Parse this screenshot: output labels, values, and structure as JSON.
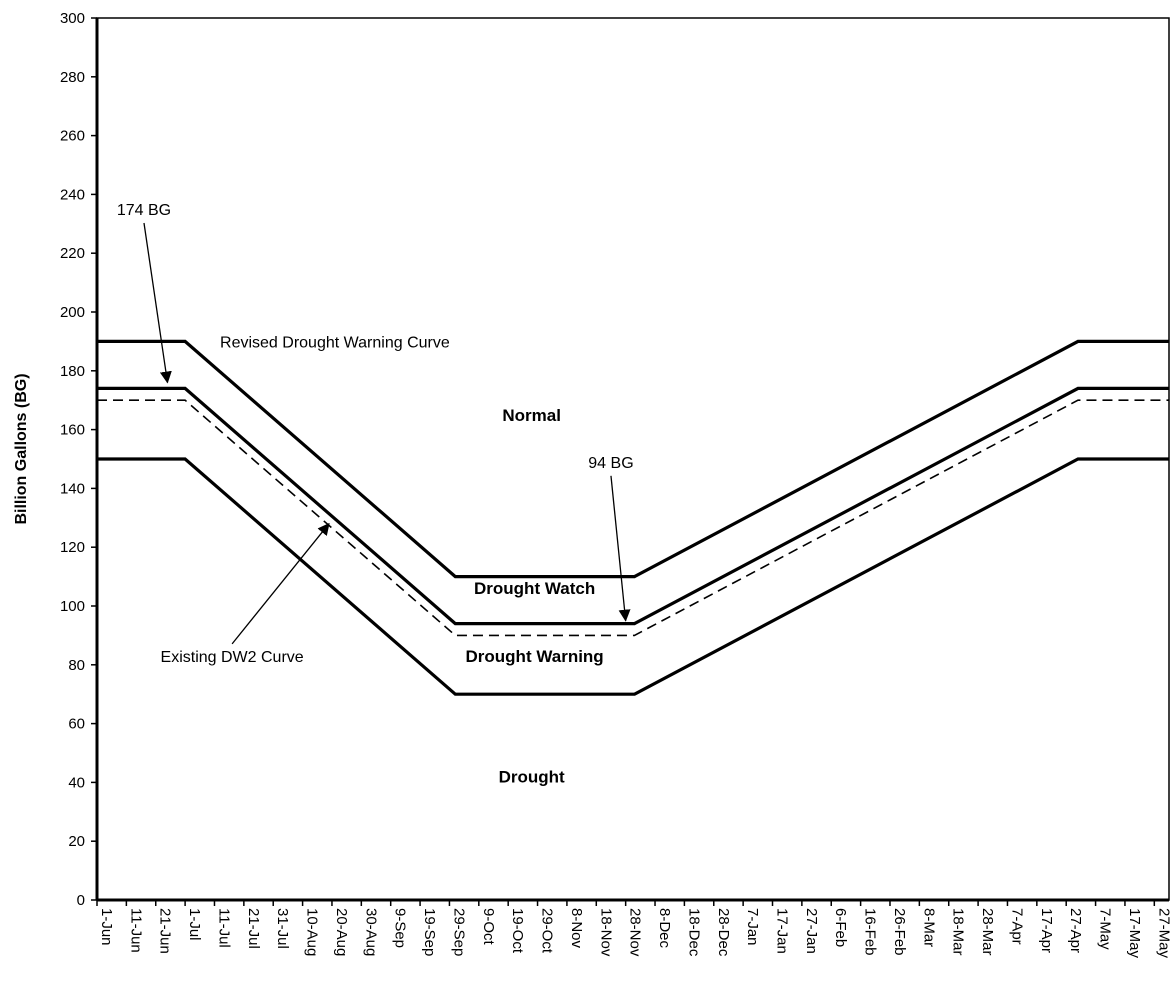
{
  "chart_data": {
    "type": "line",
    "title": "",
    "xlabel": "",
    "ylabel": "Billion Gallons (BG)",
    "ylim": [
      0,
      300
    ],
    "yticks": [
      0,
      20,
      40,
      60,
      80,
      100,
      120,
      140,
      160,
      180,
      200,
      220,
      240,
      260,
      280,
      300
    ],
    "x_categories": [
      "1-Jun",
      "11-Jun",
      "21-Jun",
      "1-Jul",
      "11-Jul",
      "21-Jul",
      "31-Jul",
      "10-Aug",
      "20-Aug",
      "30-Aug",
      "9-Sep",
      "19-Sep",
      "29-Sep",
      "9-Oct",
      "19-Oct",
      "29-Oct",
      "8-Nov",
      "18-Nov",
      "28-Nov",
      "8-Dec",
      "18-Dec",
      "28-Dec",
      "7-Jan",
      "17-Jan",
      "27-Jan",
      "6-Feb",
      "16-Feb",
      "26-Feb",
      "8-Mar",
      "18-Mar",
      "28-Mar",
      "7-Apr",
      "17-Apr",
      "27-Apr",
      "7-May",
      "17-May",
      "27-May"
    ],
    "grid": false,
    "series": [
      {
        "key": "upper",
        "style": "solid-bold",
        "x": [
          "1-Jun",
          "1-Jul",
          "1-Oct",
          "1-Dec",
          "1-May",
          "31-May"
        ],
        "values": [
          190,
          190,
          110,
          110,
          190,
          190
        ]
      },
      {
        "key": "revised",
        "style": "solid-bold",
        "x": [
          "1-Jun",
          "1-Jul",
          "1-Oct",
          "1-Dec",
          "1-May",
          "31-May"
        ],
        "values": [
          174,
          174,
          94,
          94,
          174,
          174
        ]
      },
      {
        "key": "existing",
        "style": "dashed",
        "x": [
          "1-Jun",
          "1-Jul",
          "1-Oct",
          "1-Dec",
          "1-May",
          "31-May"
        ],
        "values": [
          170,
          170,
          90,
          90,
          170,
          170
        ]
      },
      {
        "key": "lower",
        "style": "solid-bold",
        "x": [
          "1-Jun",
          "1-Jul",
          "1-Oct",
          "1-Dec",
          "1-May",
          "31-May"
        ],
        "values": [
          150,
          150,
          70,
          70,
          150,
          150
        ]
      }
    ],
    "annotations": [
      {
        "text": "174 BG",
        "x": "17-Jun",
        "y": 233,
        "style": "normal",
        "arrow_to": {
          "x": "25-Jun",
          "y": 176
        }
      },
      {
        "text": "94 BG",
        "x": "23-Nov",
        "y": 147,
        "style": "normal",
        "arrow_to": {
          "x": "28-Nov",
          "y": 95
        }
      },
      {
        "text": "Existing DW2 Curve",
        "x": "17-Jul",
        "y": 81,
        "style": "normal",
        "arrow_to": {
          "x": "19-Aug",
          "y": 128
        }
      },
      {
        "text": "Revised Drought Warning Curve",
        "x": "21-Aug",
        "y": 188,
        "style": "normal"
      },
      {
        "text": "Normal",
        "x": "27-Oct",
        "y": 163,
        "style": "bold"
      },
      {
        "text": "Drought Watch",
        "x": "28-Oct",
        "y": 104,
        "style": "bold"
      },
      {
        "text": "Drought Warning",
        "x": "28-Oct",
        "y": 81,
        "style": "bold"
      },
      {
        "text": "Drought",
        "x": "27-Oct",
        "y": 40,
        "style": "bold"
      }
    ]
  }
}
